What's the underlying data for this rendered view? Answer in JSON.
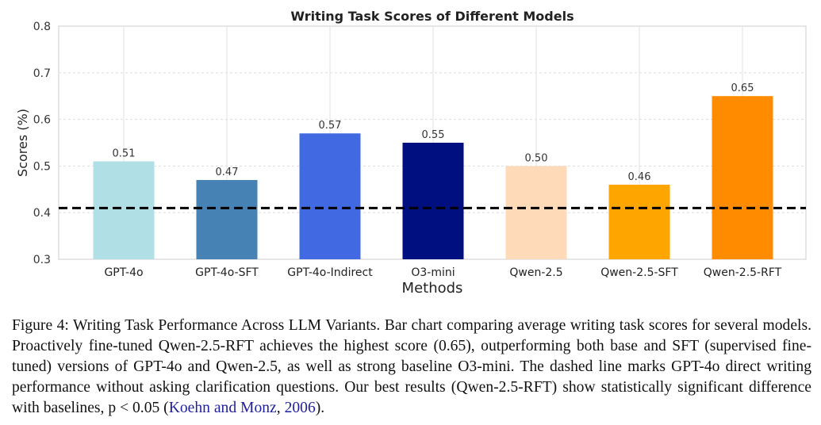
{
  "chart_data": {
    "type": "bar",
    "title": "Writing Task Scores of Different Models",
    "xlabel": "Methods",
    "ylabel": "Scores (%)",
    "ylim": [
      0.3,
      0.8
    ],
    "yticks": [
      "0.3",
      "0.4",
      "0.5",
      "0.6",
      "0.7",
      "0.8"
    ],
    "grid": true,
    "categories": [
      "GPT-4o",
      "GPT-4o-SFT",
      "GPT-4o-Indirect",
      "O3-mini",
      "Qwen-2.5",
      "Qwen-2.5-SFT",
      "Qwen-2.5-RFT"
    ],
    "values": [
      0.51,
      0.47,
      0.57,
      0.55,
      0.5,
      0.46,
      0.65
    ],
    "value_labels": [
      "0.51",
      "0.47",
      "0.57",
      "0.55",
      "0.50",
      "0.46",
      "0.65"
    ],
    "colors": [
      "#b0e0e6",
      "#4682b4",
      "#4169e1",
      "#000f80",
      "#ffdab9",
      "#ffa500",
      "#ff8c00"
    ],
    "baseline": {
      "value": 0.41,
      "style": "dashed",
      "color": "#000000"
    }
  },
  "caption": {
    "text": "Figure 4: Writing Task Performance Across LLM Variants. Bar chart comparing average writing task scores for several models. Proactively fine-tuned Qwen-2.5-RFT achieves the highest score (0.65), outperforming both base and SFT (supervised fine-tuned) versions of GPT-4o and Qwen-2.5, as well as strong baseline O3-mini. The dashed line marks GPT-4o direct writing performance without asking clarification questions. Our best results (Qwen-2.5-RFT) show statistically significant difference with baselines, p < 0.05 (",
    "citation": "Koehn and Monz",
    "citation_sep": ", ",
    "citation_year": "2006",
    "suffix": ")."
  }
}
